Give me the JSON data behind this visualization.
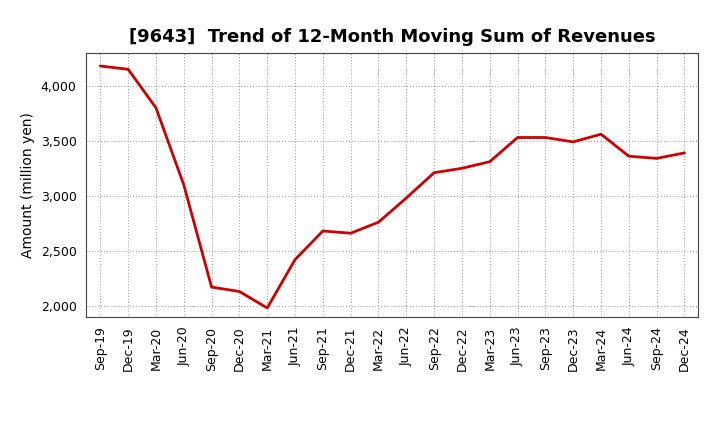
{
  "title": "[9643]  Trend of 12-Month Moving Sum of Revenues",
  "ylabel": "Amount (million yen)",
  "line_color": "#cc0000",
  "background_color": "#ffffff",
  "plot_bg_color": "#ffffff",
  "grid_color": "#999999",
  "xlabels": [
    "Sep-19",
    "Dec-19",
    "Mar-20",
    "Jun-20",
    "Sep-20",
    "Dec-20",
    "Mar-21",
    "Jun-21",
    "Sep-21",
    "Dec-21",
    "Mar-22",
    "Jun-22",
    "Sep-22",
    "Dec-22",
    "Mar-23",
    "Jun-23",
    "Sep-23",
    "Dec-23",
    "Mar-24",
    "Jun-24",
    "Sep-24",
    "Dec-24"
  ],
  "values": [
    4180,
    4150,
    3800,
    3100,
    2170,
    2130,
    1980,
    2420,
    2680,
    2660,
    2760,
    2980,
    3210,
    3250,
    3310,
    3530,
    3530,
    3490,
    3560,
    3360,
    3340,
    3390
  ],
  "ylim": [
    1900,
    4300
  ],
  "yticks": [
    2000,
    2500,
    3000,
    3500,
    4000
  ],
  "title_fontsize": 13,
  "label_fontsize": 10,
  "tick_fontsize": 9,
  "line_width": 2.0
}
